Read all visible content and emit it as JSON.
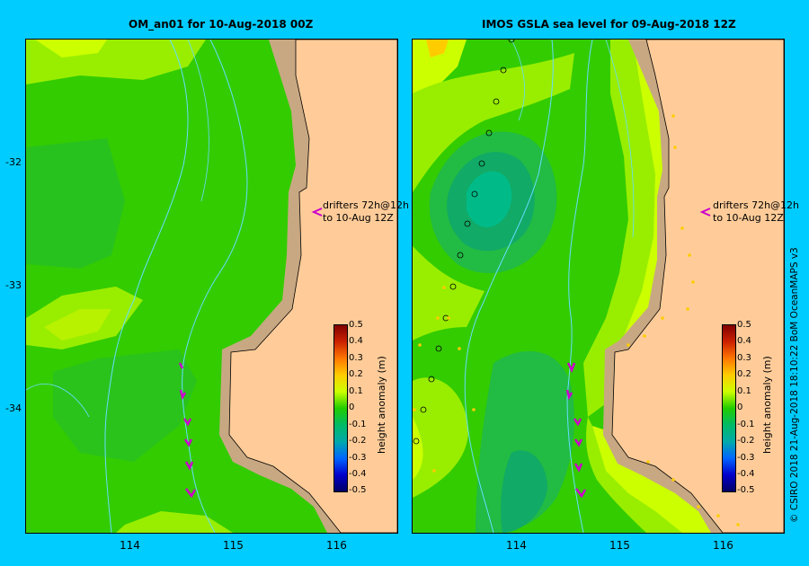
{
  "panels": [
    {
      "title": "OM_an01  for 10-Aug-2018 00Z",
      "drifter_note_line1": "drifters 72h@12h",
      "drifter_note_line2": "to 10-Aug 12Z"
    },
    {
      "title": "IMOS GSLA sea level  for 09-Aug-2018 12Z",
      "drifter_note_line1": "drifters 72h@12h",
      "drifter_note_line2": "to 10-Aug 12Z"
    }
  ],
  "y_ticks": [
    "-32",
    "-33",
    "-34"
  ],
  "x_ticks": [
    "114",
    "115",
    "116"
  ],
  "colorbar": {
    "title": "height anomaly (m)",
    "ticks": [
      "0.5",
      "0.4",
      "0.3",
      "0.2",
      "0.1",
      "0",
      "-0.1",
      "-0.2",
      "-0.3",
      "-0.4",
      "-0.5"
    ],
    "colors": [
      "#800000",
      "#cc2200",
      "#ff7700",
      "#ffcc00",
      "#ccff00",
      "#22cc00",
      "#00bb66",
      "#00aaaa",
      "#0066ff",
      "#0000cc",
      "#000066"
    ]
  },
  "credit": "© CSIRO 2018   21-Aug-2018 18:10:22 BoM OceanMAPS v3",
  "colors": {
    "background": "#00ccff",
    "land": "#ffcc99",
    "shelf": "#c8a882",
    "drifter": "#cc00cc",
    "isobath": "#66ddff"
  }
}
